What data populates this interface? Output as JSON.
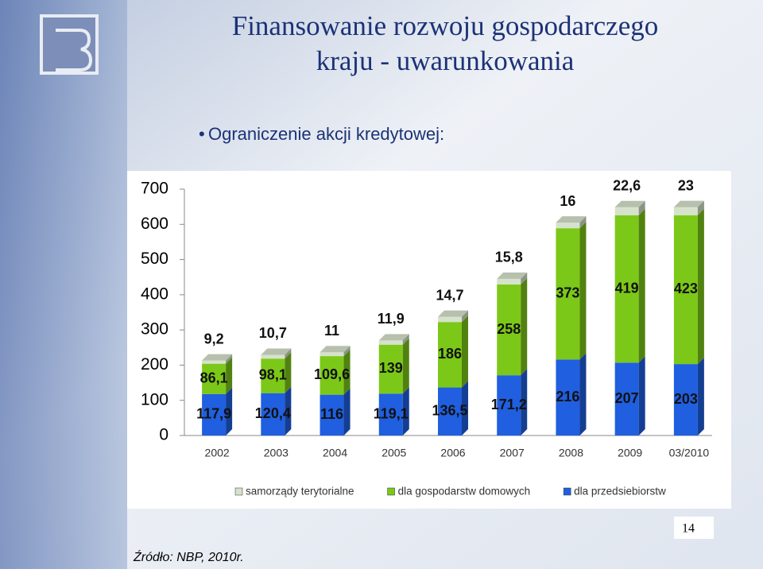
{
  "slide": {
    "title": [
      "Finansowanie rozwoju gospodarczego",
      "kraju - uwarunkowania"
    ],
    "bullet": "Ograniczenie akcji kredytowej:",
    "page_number": "14",
    "source": "Źródło: NBP, 2010r."
  },
  "chart_data": {
    "type": "stacked-bar-3d",
    "categories": [
      "2002",
      "2003",
      "2004",
      "2005",
      "2006",
      "2007",
      "2008",
      "2009",
      "03/2010"
    ],
    "series": [
      {
        "name": "dla przedsiebiorstw",
        "color": "#1f5fe0",
        "values": [
          117.9,
          120.4,
          116,
          119.1,
          136.5,
          171.2,
          216,
          207,
          203
        ],
        "value_labels": [
          "117,9",
          "120,4",
          "116",
          "119,1",
          "136,5",
          "171,2",
          "216",
          "207",
          "203"
        ]
      },
      {
        "name": "dla gospodarstw domowych",
        "color": "#7cc818",
        "values": [
          86.1,
          98.1,
          109.6,
          139,
          186,
          258,
          373,
          419,
          423
        ],
        "value_labels": [
          "86,1",
          "98,1",
          "109,6",
          "139",
          "186",
          "258",
          "373",
          "419",
          "423"
        ]
      },
      {
        "name": "samorządy terytorialne",
        "color": "#d6e2cc",
        "values": [
          9.2,
          10.7,
          11,
          11.9,
          14.7,
          15.8,
          16,
          22.6,
          23
        ],
        "value_labels": [
          "9,2",
          "10,7",
          "11",
          "11,9",
          "14,7",
          "15,8",
          "16",
          "22,6",
          "23"
        ]
      }
    ],
    "legend_order": [
      2,
      1,
      0
    ],
    "ylim": [
      0,
      700
    ],
    "yticks": [
      0,
      100,
      200,
      300,
      400,
      500,
      600,
      700
    ]
  }
}
